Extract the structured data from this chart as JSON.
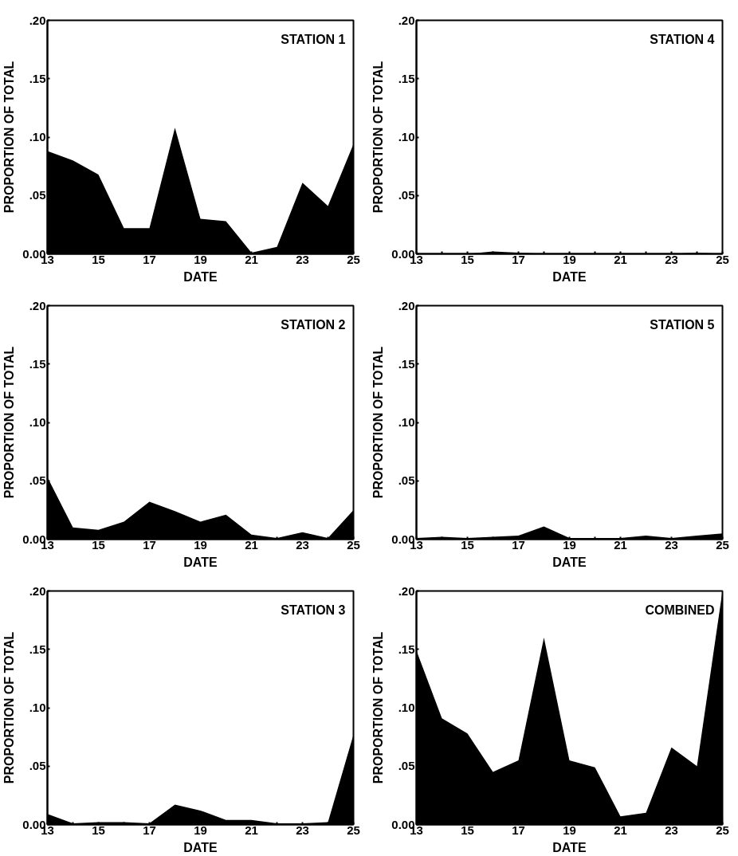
{
  "chart_data": [
    {
      "type": "area",
      "title": "STATION 1",
      "xlabel": "DATE",
      "ylabel": "PROPORTION OF TOTAL",
      "color": "#000000",
      "x": [
        13,
        14,
        15,
        16,
        17,
        18,
        19,
        20,
        21,
        22,
        23,
        24,
        25
      ],
      "values": [
        0.088,
        0.08,
        0.068,
        0.022,
        0.022,
        0.108,
        0.03,
        0.028,
        0.001,
        0.006,
        0.061,
        0.041,
        0.094
      ],
      "xlim": [
        13,
        25
      ],
      "ylim": [
        0,
        0.2
      ],
      "xticks": [
        13,
        {
          "value": 14,
          "label": null
        },
        15,
        {
          "value": 16,
          "label": null
        },
        17,
        {
          "value": 18,
          "label": null
        },
        19,
        {
          "value": 20,
          "label": null
        },
        21,
        {
          "value": 22,
          "label": null
        },
        23,
        {
          "value": 24,
          "label": null
        },
        25
      ],
      "yticks": [
        {
          "value": 0,
          "label": "0.00"
        },
        {
          "value": 0.05,
          "label": ".05"
        },
        {
          "value": 0.1,
          "label": ".10"
        },
        {
          "value": 0.15,
          "label": ".15"
        },
        {
          "value": 0.2,
          "label": ".20"
        }
      ]
    },
    {
      "type": "area",
      "title": "STATION 4",
      "xlabel": "DATE",
      "ylabel": "PROPORTION OF TOTAL",
      "color": "#000000",
      "x": [
        13,
        14,
        15,
        16,
        17,
        18,
        19,
        20,
        21,
        22,
        23,
        24,
        25
      ],
      "values": [
        0.0,
        0.0,
        0.0,
        0.002,
        0.001,
        0.0,
        0.0,
        0.0,
        0.0,
        0.0,
        0.0,
        0.001,
        0.0
      ],
      "xlim": [
        13,
        25
      ],
      "ylim": [
        0,
        0.2
      ],
      "xticks": [
        13,
        {
          "value": 14,
          "label": null
        },
        15,
        {
          "value": 16,
          "label": null
        },
        17,
        {
          "value": 18,
          "label": null
        },
        19,
        {
          "value": 20,
          "label": null
        },
        21,
        {
          "value": 22,
          "label": null
        },
        23,
        {
          "value": 24,
          "label": null
        },
        25
      ],
      "yticks": [
        {
          "value": 0,
          "label": "0.00"
        },
        {
          "value": 0.05,
          "label": ".05"
        },
        {
          "value": 0.1,
          "label": ".10"
        },
        {
          "value": 0.15,
          "label": ".15"
        },
        {
          "value": 0.2,
          "label": ".20"
        }
      ]
    },
    {
      "type": "area",
      "title": "STATION 2",
      "xlabel": "DATE",
      "ylabel": "PROPORTION OF TOTAL",
      "color": "#000000",
      "x": [
        13,
        14,
        15,
        16,
        17,
        18,
        19,
        20,
        21,
        22,
        23,
        24,
        25
      ],
      "values": [
        0.053,
        0.01,
        0.008,
        0.015,
        0.032,
        0.024,
        0.015,
        0.021,
        0.004,
        0.001,
        0.006,
        0.001,
        0.025
      ],
      "xlim": [
        13,
        25
      ],
      "ylim": [
        0,
        0.2
      ],
      "xticks": [
        13,
        {
          "value": 14,
          "label": null
        },
        15,
        {
          "value": 16,
          "label": null
        },
        17,
        {
          "value": 18,
          "label": null
        },
        19,
        {
          "value": 20,
          "label": null
        },
        21,
        {
          "value": 22,
          "label": null
        },
        23,
        {
          "value": 24,
          "label": null
        },
        25
      ],
      "yticks": [
        {
          "value": 0,
          "label": "0.00"
        },
        {
          "value": 0.05,
          "label": ".05"
        },
        {
          "value": 0.1,
          "label": ".10"
        },
        {
          "value": 0.15,
          "label": ".15"
        },
        {
          "value": 0.2,
          "label": ".20"
        }
      ]
    },
    {
      "type": "area",
      "title": "STATION 5",
      "xlabel": "DATE",
      "ylabel": "PROPORTION OF TOTAL",
      "color": "#000000",
      "x": [
        13,
        14,
        15,
        16,
        17,
        18,
        19,
        20,
        21,
        22,
        23,
        24,
        25
      ],
      "values": [
        0.001,
        0.002,
        0.001,
        0.002,
        0.003,
        0.011,
        0.001,
        0.001,
        0.001,
        0.003,
        0.001,
        0.003,
        0.005
      ],
      "xlim": [
        13,
        25
      ],
      "ylim": [
        0,
        0.2
      ],
      "xticks": [
        13,
        {
          "value": 14,
          "label": null
        },
        15,
        {
          "value": 16,
          "label": null
        },
        17,
        {
          "value": 18,
          "label": null
        },
        19,
        {
          "value": 20,
          "label": null
        },
        21,
        {
          "value": 22,
          "label": null
        },
        23,
        {
          "value": 24,
          "label": null
        },
        25
      ],
      "yticks": [
        {
          "value": 0,
          "label": "0.00"
        },
        {
          "value": 0.05,
          "label": ".05"
        },
        {
          "value": 0.1,
          "label": ".10"
        },
        {
          "value": 0.15,
          "label": ".15"
        },
        {
          "value": 0.2,
          "label": ".20"
        }
      ]
    },
    {
      "type": "area",
      "title": "STATION 3",
      "xlabel": "DATE",
      "ylabel": "PROPORTION OF TOTAL",
      "color": "#000000",
      "x": [
        13,
        14,
        15,
        16,
        17,
        18,
        19,
        20,
        21,
        22,
        23,
        24,
        25
      ],
      "values": [
        0.009,
        0.001,
        0.002,
        0.002,
        0.001,
        0.017,
        0.012,
        0.004,
        0.004,
        0.001,
        0.001,
        0.002,
        0.077
      ],
      "xlim": [
        13,
        25
      ],
      "ylim": [
        0,
        0.2
      ],
      "xticks": [
        13,
        {
          "value": 14,
          "label": null
        },
        15,
        {
          "value": 16,
          "label": null
        },
        17,
        {
          "value": 18,
          "label": null
        },
        19,
        {
          "value": 20,
          "label": null
        },
        21,
        {
          "value": 22,
          "label": null
        },
        23,
        {
          "value": 24,
          "label": null
        },
        25
      ],
      "yticks": [
        {
          "value": 0,
          "label": "0.00"
        },
        {
          "value": 0.05,
          "label": ".05"
        },
        {
          "value": 0.1,
          "label": ".10"
        },
        {
          "value": 0.15,
          "label": ".15"
        },
        {
          "value": 0.2,
          "label": ".20"
        }
      ]
    },
    {
      "type": "area",
      "title": "COMBINED",
      "xlabel": "DATE",
      "ylabel": "PROPORTION OF TOTAL",
      "color": "#000000",
      "x": [
        13,
        14,
        15,
        16,
        17,
        18,
        19,
        20,
        21,
        22,
        23,
        24,
        25
      ],
      "values": [
        0.149,
        0.091,
        0.078,
        0.045,
        0.055,
        0.16,
        0.055,
        0.049,
        0.007,
        0.01,
        0.066,
        0.05,
        0.2
      ],
      "xlim": [
        13,
        25
      ],
      "ylim": [
        0,
        0.2
      ],
      "xticks": [
        13,
        {
          "value": 14,
          "label": null
        },
        15,
        {
          "value": 16,
          "label": null
        },
        17,
        {
          "value": 18,
          "label": null
        },
        19,
        {
          "value": 20,
          "label": null
        },
        21,
        {
          "value": 22,
          "label": null
        },
        23,
        {
          "value": 24,
          "label": null
        },
        25
      ],
      "yticks": [
        {
          "value": 0,
          "label": "0.00"
        },
        {
          "value": 0.05,
          "label": ".05"
        },
        {
          "value": 0.1,
          "label": ".10"
        },
        {
          "value": 0.15,
          "label": ".15"
        },
        {
          "value": 0.2,
          "label": ".20"
        }
      ]
    }
  ]
}
